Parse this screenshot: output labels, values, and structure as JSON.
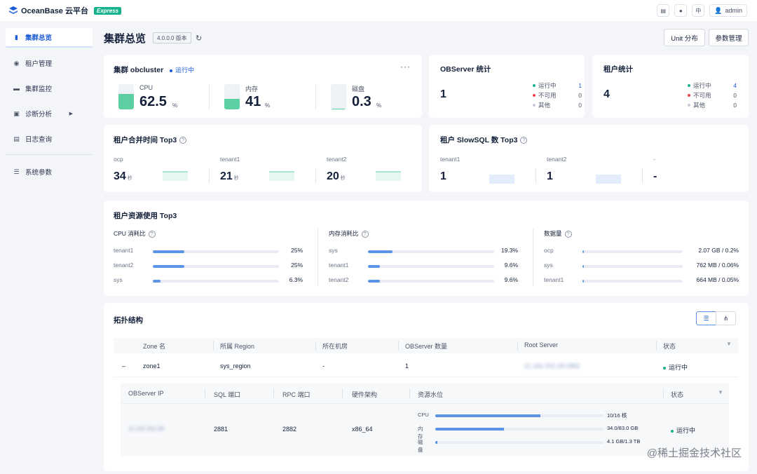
{
  "app": {
    "brand": "OceanBase 云平台",
    "edition": "Express"
  },
  "topbar": {
    "lang": "中",
    "user": "admin"
  },
  "sidebar": {
    "items": [
      {
        "label": "集群总览"
      },
      {
        "label": "租户管理"
      },
      {
        "label": "集群监控"
      },
      {
        "label": "诊断分析"
      },
      {
        "label": "日志查询"
      },
      {
        "label": "系统参数"
      }
    ]
  },
  "header": {
    "title": "集群总览",
    "version": "4.0.0.0 版本",
    "unit_btn": "Unit 分布",
    "param_btn": "参数管理"
  },
  "cluster": {
    "title": "集群 obcluster",
    "status": "运行中",
    "more": "···",
    "cpu": {
      "label": "CPU",
      "value": "62.5",
      "unit": "%",
      "level": 0.625
    },
    "mem": {
      "label": "内存",
      "value": "41",
      "unit": "%",
      "level": 0.41
    },
    "disk": {
      "label": "磁盘",
      "value": "0.3",
      "unit": "%",
      "level": 0.003
    }
  },
  "observer_stats": {
    "title": "OBServer 统计",
    "total": "1",
    "running_label": "运行中",
    "running": "1",
    "unavailable_label": "不可用",
    "unavailable": "0",
    "other_label": "其他",
    "other": "0"
  },
  "tenant_stats": {
    "title": "租户统计",
    "total": "4",
    "running_label": "运行中",
    "running": "4",
    "unavailable_label": "不可用",
    "unavailable": "0",
    "other_label": "其他",
    "other": "0"
  },
  "merge_top3": {
    "title": "租户合并时间 Top3",
    "unit": "秒",
    "items": [
      {
        "name": "ocp",
        "value": "34"
      },
      {
        "name": "tenant1",
        "value": "21"
      },
      {
        "name": "tenant2",
        "value": "20"
      }
    ]
  },
  "slowsql_top3": {
    "title": "租户 SlowSQL 数 Top3",
    "items": [
      {
        "name": "tenant1",
        "value": "1"
      },
      {
        "name": "tenant2",
        "value": "1"
      },
      {
        "name": "-",
        "value": "-"
      }
    ]
  },
  "resource_top3": {
    "title": "租户资源使用 Top3",
    "cpu": {
      "title": "CPU 消耗比",
      "rows": [
        {
          "name": "tenant1",
          "value": "25%",
          "ratio": 0.25
        },
        {
          "name": "tenant2",
          "value": "25%",
          "ratio": 0.25
        },
        {
          "name": "sys",
          "value": "6.3%",
          "ratio": 0.063
        }
      ]
    },
    "mem": {
      "title": "内存消耗比",
      "rows": [
        {
          "name": "sys",
          "value": "19.3%",
          "ratio": 0.193
        },
        {
          "name": "tenant1",
          "value": "9.6%",
          "ratio": 0.096
        },
        {
          "name": "tenant2",
          "value": "9.6%",
          "ratio": 0.096
        }
      ]
    },
    "data": {
      "title": "数据量",
      "rows": [
        {
          "name": "ocp",
          "value": "2.07 GB / 0.2%",
          "ratio": 0.002
        },
        {
          "name": "sys",
          "value": "762 MB / 0.06%",
          "ratio": 0.0006
        },
        {
          "name": "tenant1",
          "value": "664 MB / 0.05%",
          "ratio": 0.0005
        }
      ]
    }
  },
  "topology": {
    "title": "拓扑结构",
    "headers": [
      "Zone 名",
      "所属 Region",
      "所在机房",
      "OBServer 数量",
      "Root Server",
      "状态"
    ],
    "zone": {
      "expand": "–",
      "name": "zone1",
      "region": "sys_region",
      "idc": "-",
      "count": "1",
      "root_server": "11.162.202.28:2882",
      "status": "运行中"
    },
    "sub_headers": [
      "OBServer IP",
      "SQL 端口",
      "RPC 端口",
      "硬件架构",
      "资源水位",
      "状态"
    ],
    "server": {
      "ip": "11.162.202.28",
      "sql_port": "2881",
      "rpc_port": "2882",
      "arch": "x86_64",
      "status": "运行中",
      "resources": [
        {
          "label": "CPU",
          "value": "10/16 核",
          "ratio": 0.625
        },
        {
          "label": "内存",
          "value": "34.0/83.0 GB",
          "ratio": 0.41
        },
        {
          "label": "磁盘",
          "value": "4.1 GB/1.3 TB",
          "ratio": 0.003
        }
      ]
    }
  },
  "watermark": "@稀土掘金技术社区",
  "colors": {
    "accent": "#1a5bd8",
    "green": "#5ccfa3",
    "bar": "#5b93e7",
    "running": "#17b38c",
    "error": "#e5484d",
    "other": "#c6ccd6"
  }
}
